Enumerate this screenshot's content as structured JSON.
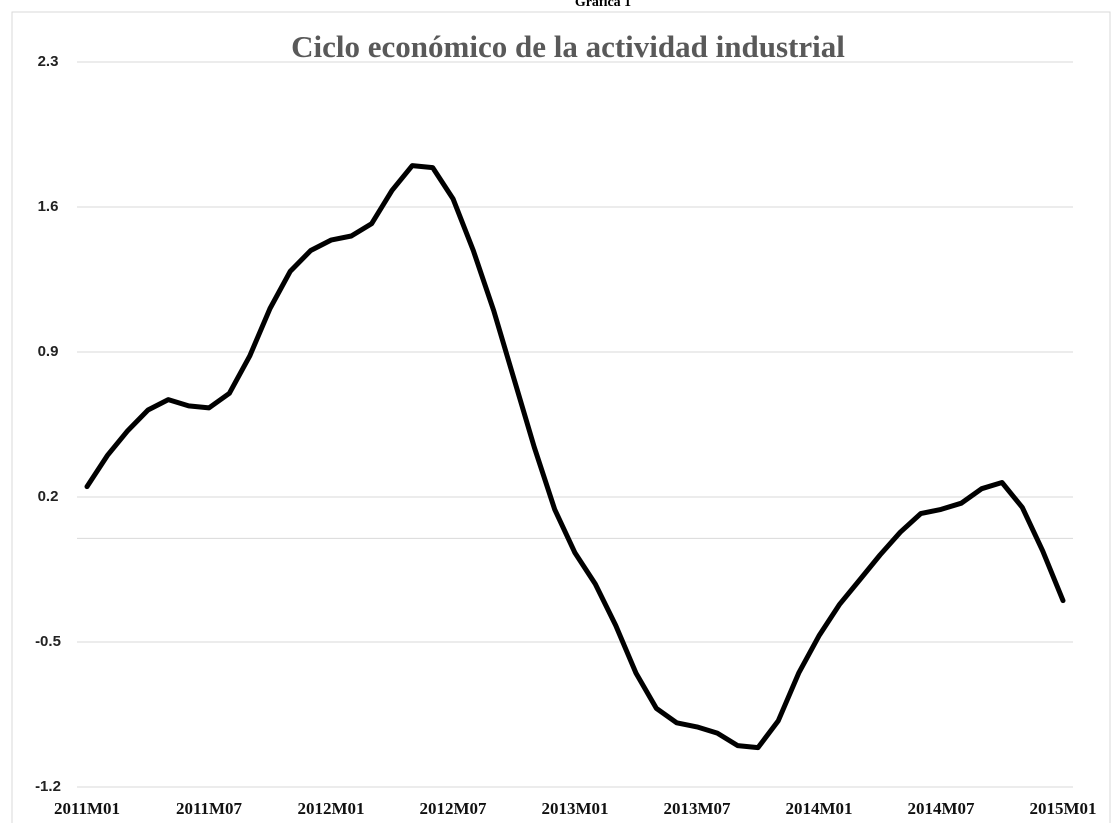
{
  "header": "Gráfica 1",
  "chart_data": {
    "type": "line",
    "title": "Ciclo económico de la actividad industrial",
    "categories": [
      "2011M01",
      null,
      null,
      null,
      null,
      null,
      "2011M07",
      null,
      null,
      null,
      null,
      null,
      "2012M01",
      null,
      null,
      null,
      null,
      null,
      "2012M07",
      null,
      null,
      null,
      null,
      null,
      "2013M01",
      null,
      null,
      null,
      null,
      null,
      "2013M07",
      null,
      null,
      null,
      null,
      null,
      "2014M01",
      null,
      null,
      null,
      null,
      null,
      "2014M07",
      null,
      null,
      null,
      null,
      null,
      "2015M01"
    ],
    "series": [
      {
        "color": "#000000",
        "values": [
          0.25,
          0.4,
          0.52,
          0.62,
          0.67,
          0.64,
          0.63,
          0.7,
          0.88,
          1.11,
          1.29,
          1.39,
          1.44,
          1.46,
          1.52,
          1.68,
          1.8,
          1.79,
          1.64,
          1.39,
          1.1,
          0.77,
          0.44,
          0.14,
          -0.07,
          -0.22,
          -0.42,
          -0.65,
          -0.82,
          -0.89,
          -0.91,
          -0.94,
          -1.0,
          -1.01,
          -0.88,
          -0.65,
          -0.47,
          -0.32,
          -0.2,
          -0.08,
          0.03,
          0.12,
          0.14,
          0.17,
          0.24,
          0.27,
          0.15,
          -0.06,
          -0.3
        ]
      }
    ],
    "ylim": [
      -1.2,
      2.3
    ],
    "yticks": [
      -1.2,
      -0.5,
      0.2,
      0.9,
      1.6,
      2.3
    ],
    "grid": true
  }
}
